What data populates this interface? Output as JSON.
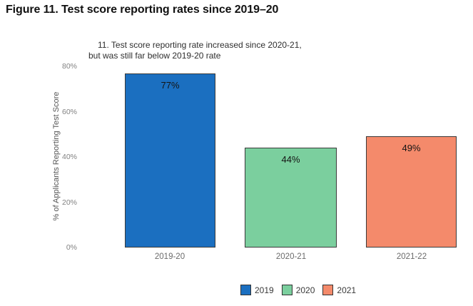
{
  "figure_title": "Figure 11. Test score reporting rates since 2019–20",
  "chart_data": {
    "type": "bar",
    "title_lines": [
      "11. Test score reporting rate increased since 2020-21,",
      "but was still far below 2019-20 rate"
    ],
    "categories": [
      "2019-20",
      "2020-21",
      "2021-22"
    ],
    "values": [
      77,
      44,
      49
    ],
    "bar_labels": [
      "77%",
      "44%",
      "49%"
    ],
    "bar_colors": [
      "#1b6fc0",
      "#7bcf9e",
      "#f48a6b"
    ],
    "ylabel": "% of Applicants Reporting Test Score",
    "xlabel": "",
    "yticks": [
      "80%",
      "60%",
      "40%",
      "20%",
      "0%"
    ],
    "ylim": [
      0,
      80
    ],
    "grid": false,
    "legend_position": "bottom",
    "legend": [
      {
        "label": "2019",
        "color": "#1b6fc0"
      },
      {
        "label": "2020",
        "color": "#7bcf9e"
      },
      {
        "label": "2021",
        "color": "#f48a6b"
      }
    ]
  }
}
